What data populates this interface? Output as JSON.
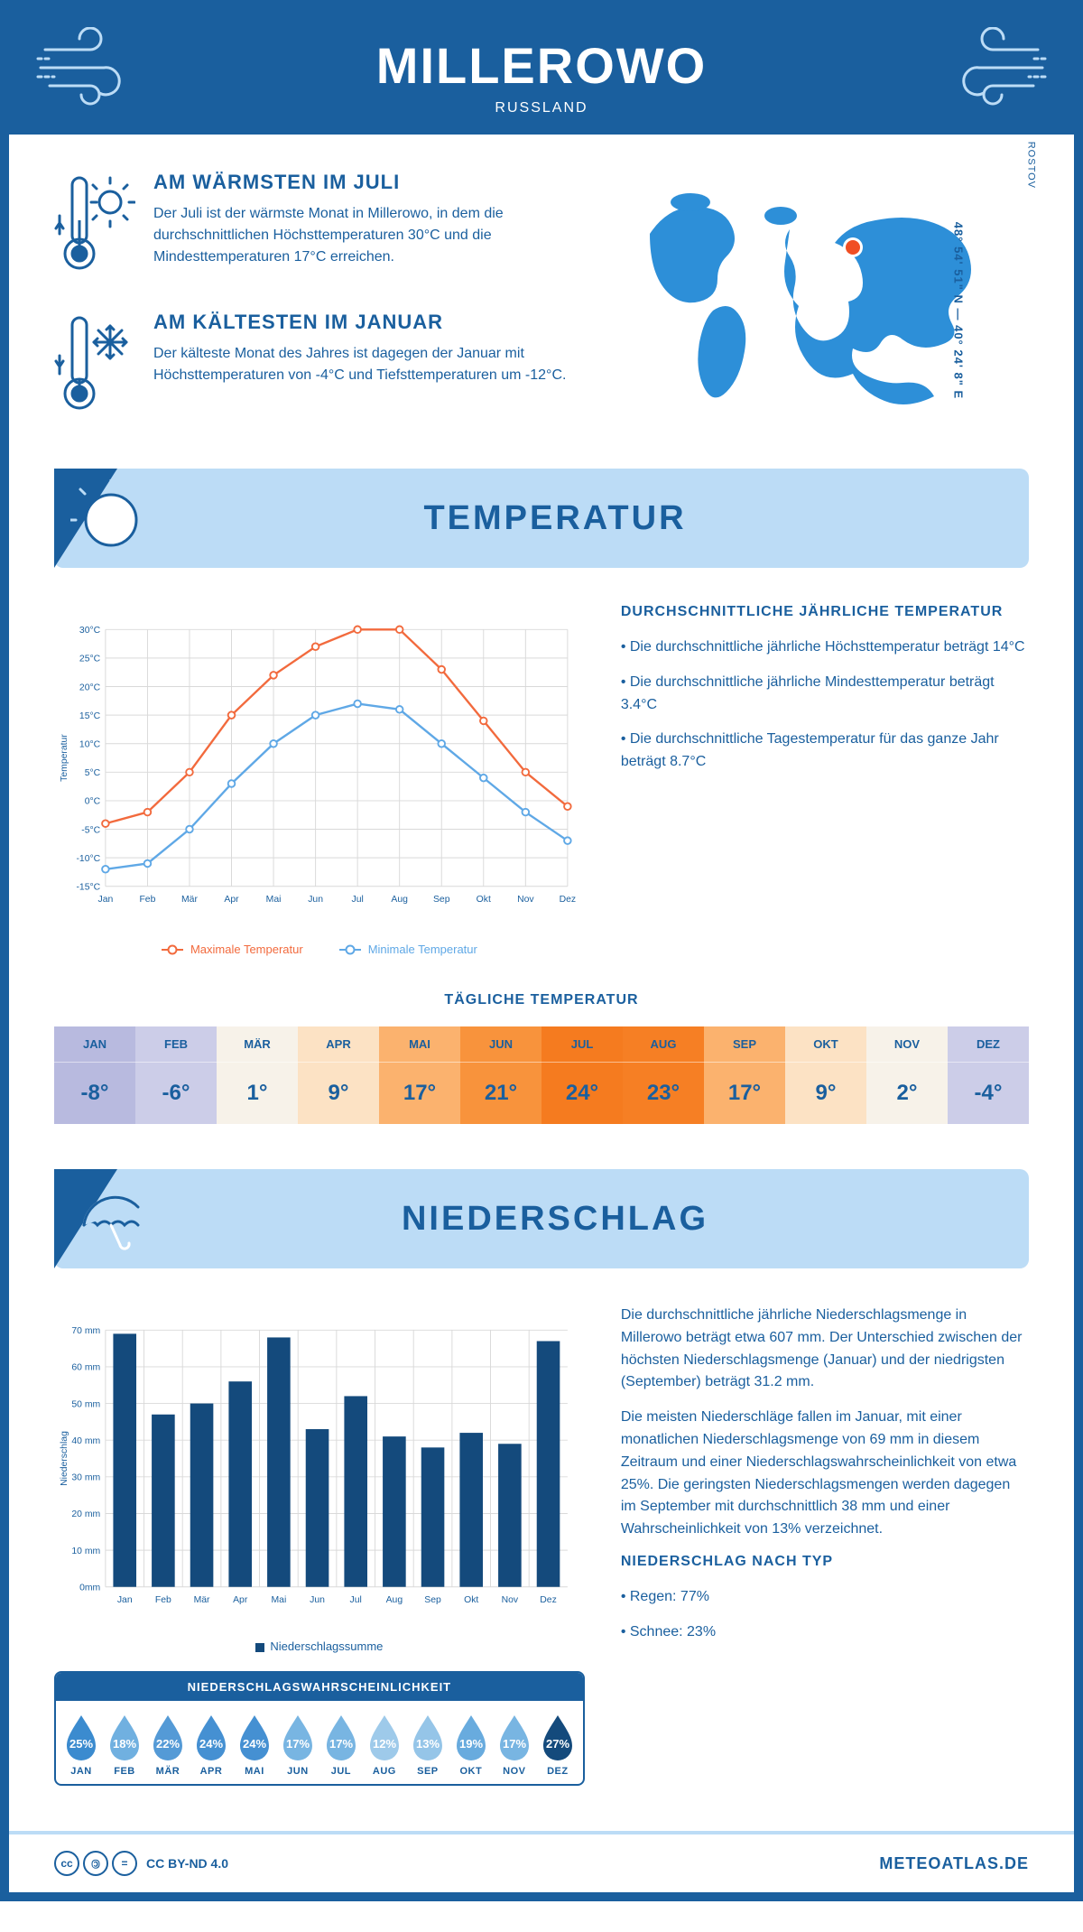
{
  "header": {
    "city": "MILLEROWO",
    "country": "RUSSLAND"
  },
  "intro": {
    "warm": {
      "title": "AM WÄRMSTEN IM JULI",
      "text": "Der Juli ist der wärmste Monat in Millerowo, in dem die durchschnittlichen Höchsttemperaturen 30°C und die Mindesttemperaturen 17°C erreichen."
    },
    "cold": {
      "title": "AM KÄLTESTEN IM JANUAR",
      "text": "Der kälteste Monat des Jahres ist dagegen der Januar mit Höchsttemperaturen von -4°C und Tiefsttemperaturen um -12°C."
    },
    "coords": "48° 54' 51\" N — 40° 24' 8\" E",
    "region": "ROSTOV"
  },
  "sections": {
    "temp_title": "TEMPERATUR",
    "precip_title": "NIEDERSCHLAG"
  },
  "temp": {
    "chart": {
      "type": "line",
      "months": [
        "Jan",
        "Feb",
        "Mär",
        "Apr",
        "Mai",
        "Jun",
        "Jul",
        "Aug",
        "Sep",
        "Okt",
        "Nov",
        "Dez"
      ],
      "max_series": [
        -4,
        -2,
        5,
        15,
        22,
        27,
        30,
        30,
        23,
        14,
        5,
        -1
      ],
      "min_series": [
        -12,
        -11,
        -5,
        3,
        10,
        15,
        17,
        16,
        10,
        4,
        -2,
        -7
      ],
      "max_color": "#f26a3d",
      "min_color": "#5fa8e6",
      "y_min": -15,
      "y_max": 30,
      "y_step": 5,
      "y_labels": [
        "-15°C",
        "-10°C",
        "-5°C",
        "0°C",
        "5°C",
        "10°C",
        "15°C",
        "20°C",
        "25°C",
        "30°C"
      ],
      "axis_label": "Temperatur",
      "grid_color": "#d9d9d9",
      "bg": "#ffffff",
      "legend_max": "Maximale Temperatur",
      "legend_min": "Minimale Temperatur"
    },
    "desc": {
      "title": "DURCHSCHNITTLICHE JÄHRLICHE TEMPERATUR",
      "bullets": [
        "Die durchschnittliche jährliche Höchsttemperatur beträgt 14°C",
        "Die durchschnittliche jährliche Mindesttemperatur beträgt 3.4°C",
        "Die durchschnittliche Tagestemperatur für das ganze Jahr beträgt 8.7°C"
      ]
    },
    "daily": {
      "title": "TÄGLICHE TEMPERATUR",
      "months": [
        "JAN",
        "FEB",
        "MÄR",
        "APR",
        "MAI",
        "JUN",
        "JUL",
        "AUG",
        "SEP",
        "OKT",
        "NOV",
        "DEZ"
      ],
      "values": [
        "-8°",
        "-6°",
        "1°",
        "9°",
        "17°",
        "21°",
        "24°",
        "23°",
        "17°",
        "9°",
        "2°",
        "-4°"
      ],
      "colors": [
        "#b8badf",
        "#cccde8",
        "#f7f2e9",
        "#fce2c4",
        "#fbb26e",
        "#f8933c",
        "#f57b1f",
        "#f67f24",
        "#fbb26e",
        "#fce2c4",
        "#f7f2e9",
        "#cccde8"
      ]
    }
  },
  "precip": {
    "chart": {
      "type": "bar",
      "months": [
        "Jan",
        "Feb",
        "Mär",
        "Apr",
        "Mai",
        "Jun",
        "Jul",
        "Aug",
        "Sep",
        "Okt",
        "Nov",
        "Dez"
      ],
      "values": [
        69,
        47,
        50,
        56,
        68,
        43,
        52,
        41,
        38,
        42,
        39,
        67
      ],
      "bar_color": "#144a7c",
      "y_min": 0,
      "y_max": 70,
      "y_step": 10,
      "y_labels": [
        "0mm",
        "10 mm",
        "20 mm",
        "30 mm",
        "40 mm",
        "50 mm",
        "60 mm",
        "70 mm"
      ],
      "axis_label": "Niederschlag",
      "grid_color": "#d9d9d9",
      "legend": "Niederschlagssumme"
    },
    "desc": {
      "p1": "Die durchschnittliche jährliche Niederschlagsmenge in Millerowo beträgt etwa 607 mm. Der Unterschied zwischen der höchsten Niederschlagsmenge (Januar) und der niedrigsten (September) beträgt 31.2 mm.",
      "p2": "Die meisten Niederschläge fallen im Januar, mit einer monatlichen Niederschlagsmenge von 69 mm in diesem Zeitraum und einer Niederschlagswahrscheinlichkeit von etwa 25%. Die geringsten Niederschlagsmengen werden dagegen im September mit durchschnittlich 38 mm und einer Wahrscheinlichkeit von 13% verzeichnet.",
      "type_title": "NIEDERSCHLAG NACH TYP",
      "type_bullets": [
        "Regen: 77%",
        "Schnee: 23%"
      ]
    },
    "prob": {
      "title": "NIEDERSCHLAGSWAHRSCHEINLICHKEIT",
      "months": [
        "JAN",
        "FEB",
        "MÄR",
        "APR",
        "MAI",
        "JUN",
        "JUL",
        "AUG",
        "SEP",
        "OKT",
        "NOV",
        "DEZ"
      ],
      "values": [
        "25%",
        "18%",
        "22%",
        "24%",
        "24%",
        "17%",
        "17%",
        "12%",
        "13%",
        "19%",
        "17%",
        "27%"
      ],
      "colors": [
        "#3b8bcf",
        "#70b0e0",
        "#549ad6",
        "#4590d2",
        "#4590d2",
        "#78b5e2",
        "#78b5e2",
        "#9ecaea",
        "#95c5e8",
        "#68abde",
        "#78b5e2",
        "#144a7c"
      ]
    }
  },
  "footer": {
    "license": "CC BY-ND 4.0",
    "site": "METEOATLAS.DE"
  },
  "colors": {
    "primary": "#1a5f9e",
    "light": "#bcdcf6",
    "map": "#2d8fd8"
  }
}
